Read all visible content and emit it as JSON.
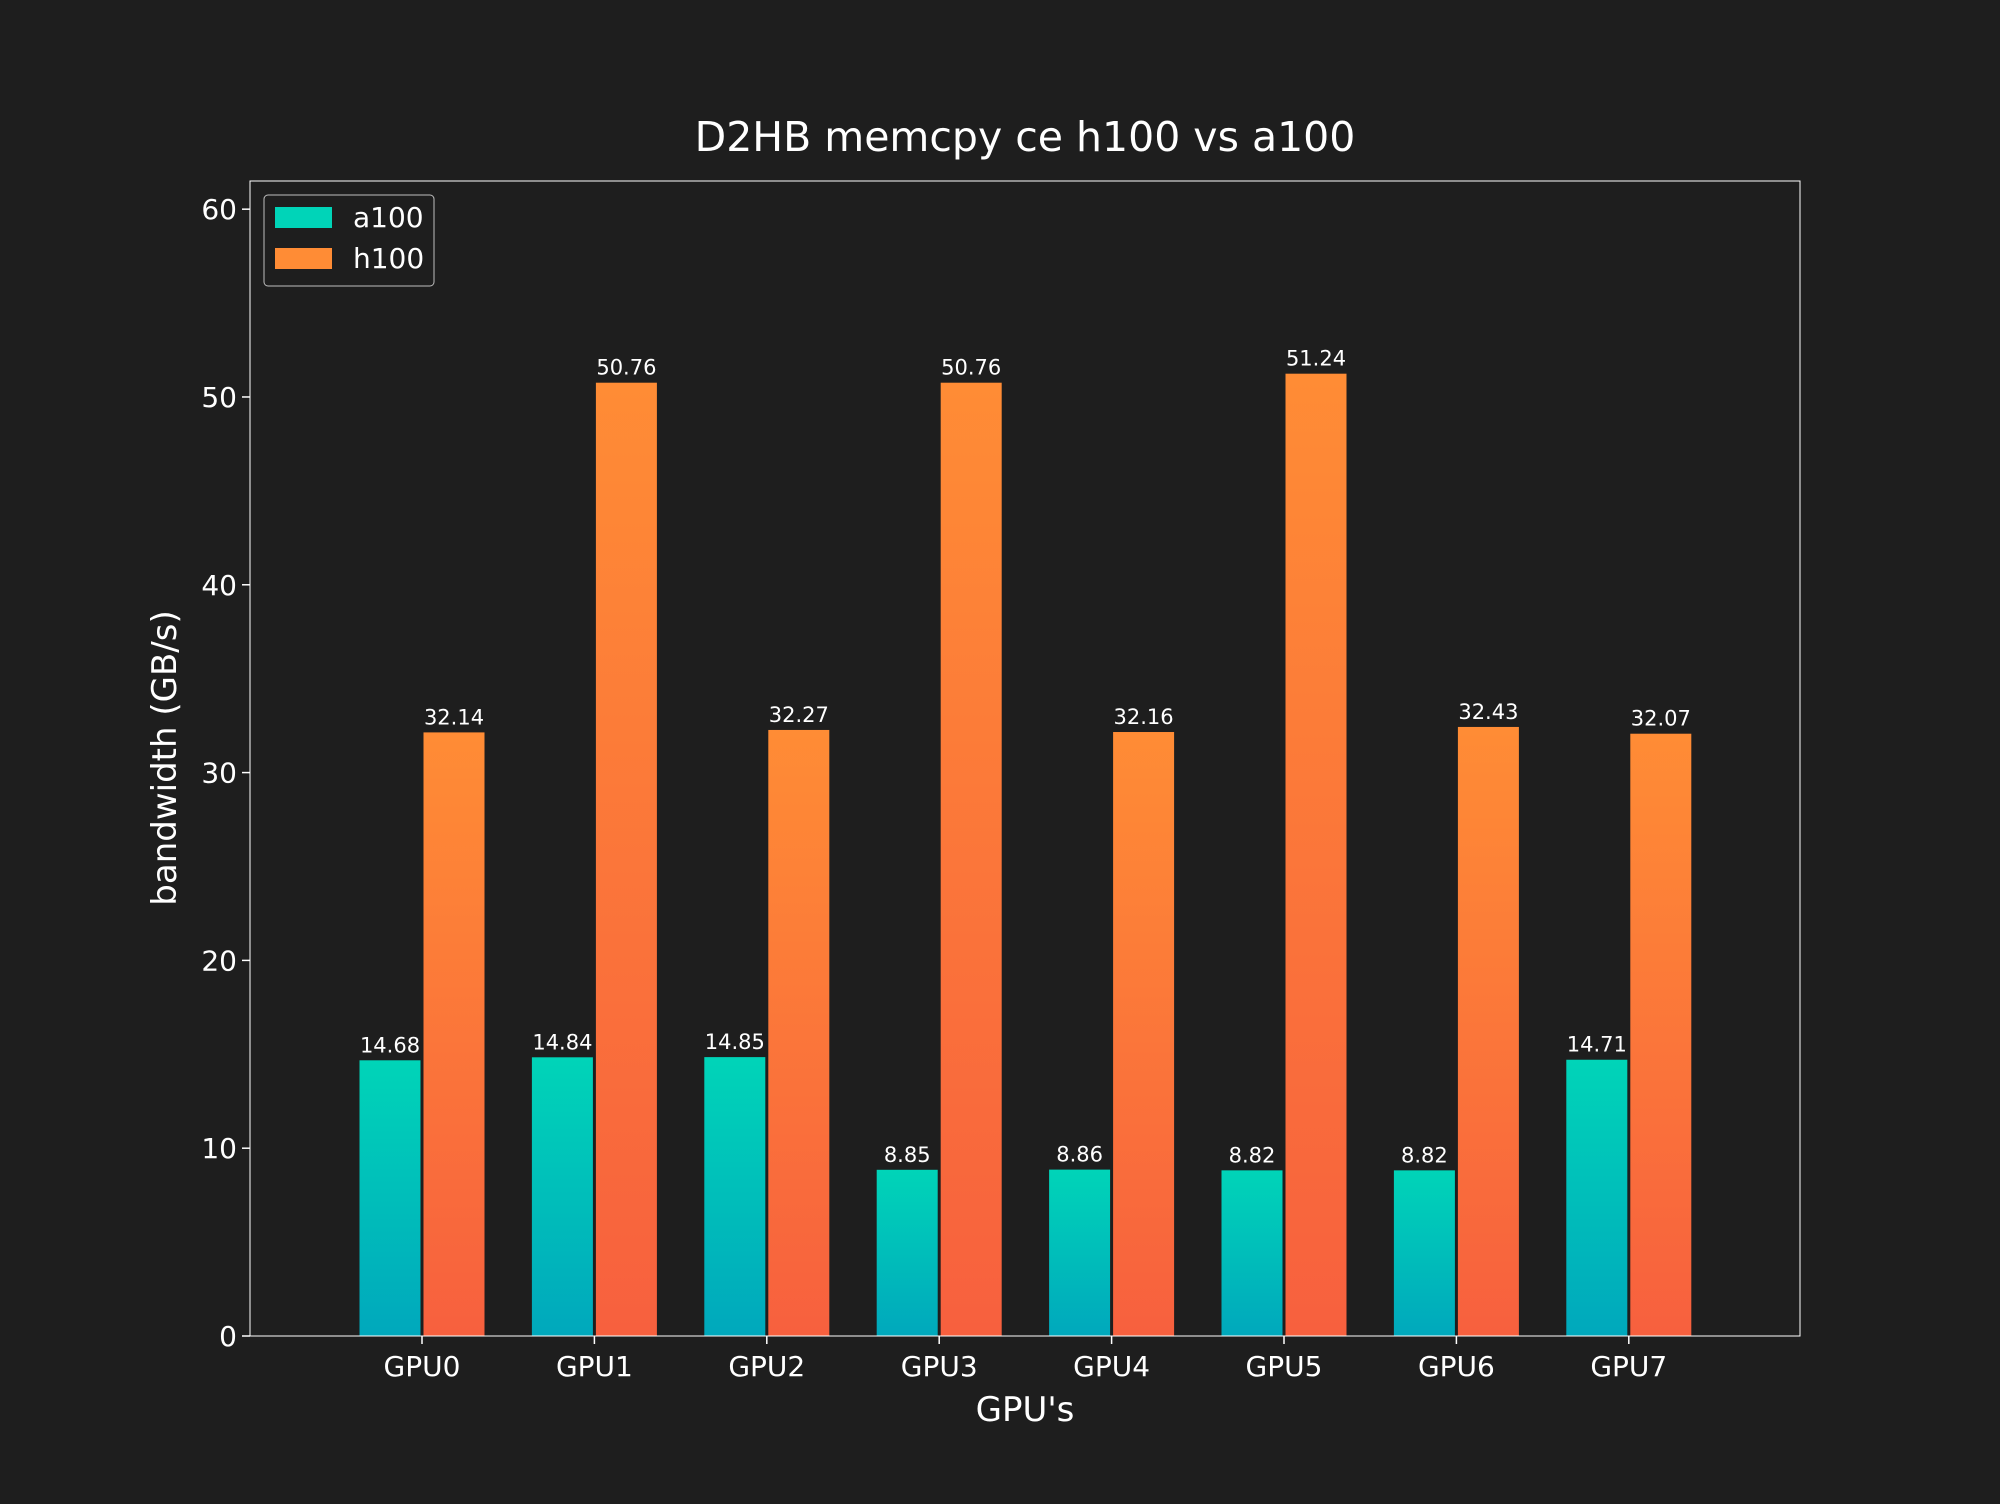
{
  "chart_data": {
    "type": "bar",
    "title": "D2HB memcpy ce h100 vs a100",
    "xlabel": "GPU's",
    "ylabel": "bandwidth (GB/s)",
    "ylim": [
      0,
      61.5
    ],
    "yticks": [
      0,
      10,
      20,
      30,
      40,
      50,
      60
    ],
    "grid": false,
    "legend_position": "top-left",
    "categories": [
      "GPU0",
      "GPU1",
      "GPU2",
      "GPU3",
      "GPU4",
      "GPU5",
      "GPU6",
      "GPU7"
    ],
    "series": [
      {
        "name": "a100",
        "values": [
          14.68,
          14.84,
          14.85,
          8.85,
          8.86,
          8.82,
          8.82,
          14.71
        ],
        "labels": [
          "14.68",
          "14.84",
          "14.85",
          "8.85",
          "8.86",
          "8.82",
          "8.82",
          "14.71"
        ],
        "color_top": "#00d4b8",
        "color_bottom": "#00a8bc"
      },
      {
        "name": "h100",
        "values": [
          32.14,
          50.76,
          32.27,
          50.76,
          32.16,
          51.24,
          32.43,
          32.07
        ],
        "labels": [
          "32.14",
          "50.76",
          "32.27",
          "50.76",
          "32.16",
          "51.24",
          "32.43",
          "32.07"
        ],
        "color_top": "#ff8c35",
        "color_bottom": "#f7603e"
      }
    ]
  }
}
